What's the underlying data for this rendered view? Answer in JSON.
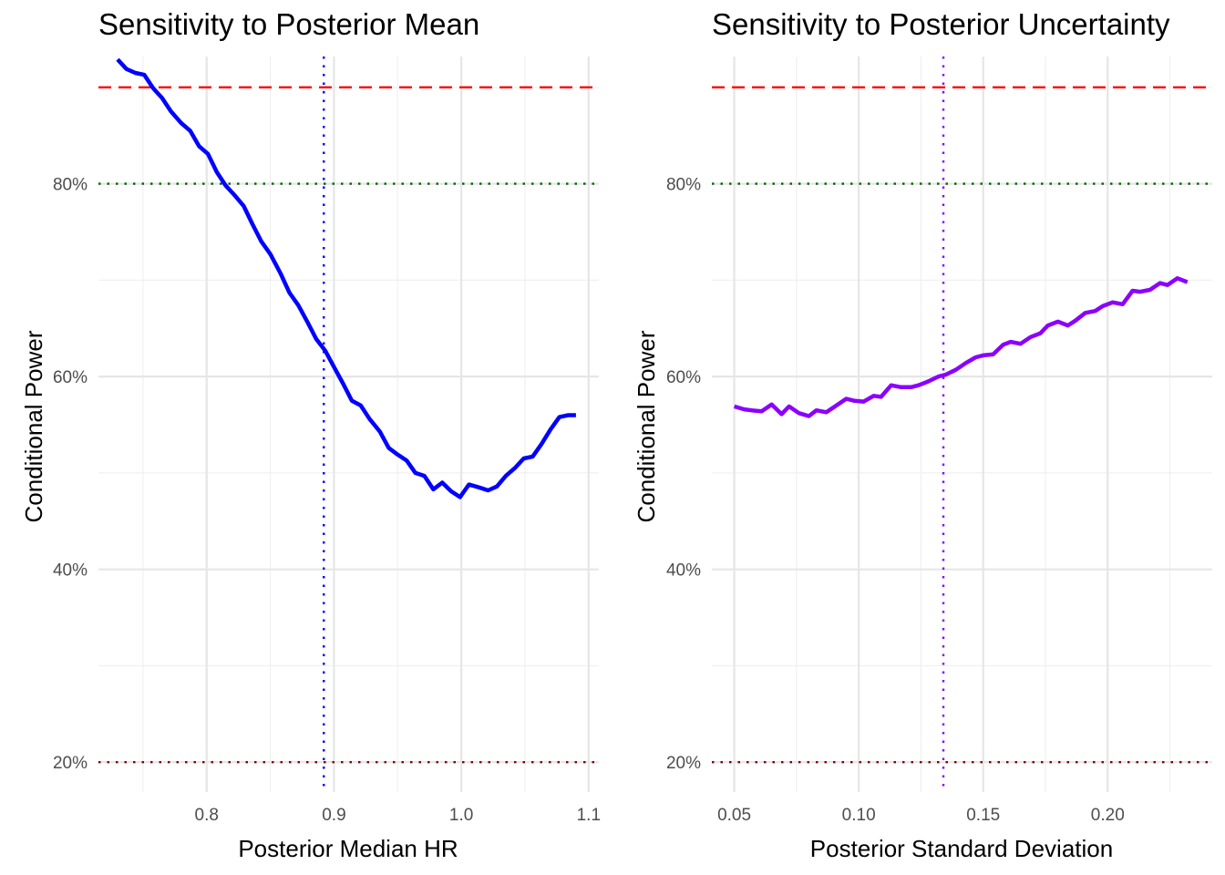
{
  "chart_data": [
    {
      "type": "line",
      "title": "Sensitivity to Posterior Mean",
      "xlabel": "Posterior Median HR",
      "ylabel": "Conditional Power",
      "xlim": [
        0.715,
        1.108
      ],
      "ylim": [
        16.9,
        93.2
      ],
      "x_ticks": [
        0.8,
        0.9,
        1.0,
        1.1
      ],
      "x_tick_labels": [
        "0.8",
        "0.9",
        "1.0",
        "1.1"
      ],
      "y_ticks": [
        20,
        40,
        60,
        80
      ],
      "y_tick_labels": [
        "20%",
        "40%",
        "60%",
        "80%"
      ],
      "grid": true,
      "line_color": "#0000ff",
      "reference_lines": [
        {
          "orientation": "horizontal",
          "value": 90,
          "style": "dashed",
          "color": "#ff0000"
        },
        {
          "orientation": "horizontal",
          "value": 80,
          "style": "dotted",
          "color": "#006400"
        },
        {
          "orientation": "horizontal",
          "value": 20,
          "style": "dotted",
          "color": "#8b0000"
        },
        {
          "orientation": "vertical",
          "value": 0.892,
          "style": "dotted",
          "color": "#0000ff"
        }
      ],
      "series": [
        {
          "x": [
            0.73,
            0.737,
            0.744,
            0.751,
            0.758,
            0.765,
            0.772,
            0.78,
            0.787,
            0.794,
            0.801,
            0.808,
            0.815,
            0.822,
            0.829,
            0.836,
            0.843,
            0.85,
            0.858,
            0.865,
            0.872,
            0.879,
            0.886,
            0.893,
            0.9,
            0.907,
            0.914,
            0.921,
            0.928,
            0.936,
            0.943,
            0.95,
            0.957,
            0.964,
            0.971,
            0.978,
            0.985,
            0.992,
            0.999,
            1.006,
            1.014,
            1.021,
            1.028,
            1.035,
            1.042,
            1.049,
            1.056,
            1.063,
            1.07,
            1.077,
            1.084,
            1.09
          ],
          "values": [
            92.9,
            91.9,
            91.5,
            91.3,
            89.9,
            88.9,
            87.5,
            86.3,
            85.5,
            83.9,
            83.1,
            81.2,
            79.8,
            78.8,
            77.7,
            75.8,
            74.0,
            72.7,
            70.7,
            68.7,
            67.4,
            65.7,
            63.9,
            62.7,
            61.0,
            59.3,
            57.5,
            57.0,
            55.6,
            54.3,
            52.6,
            51.9,
            51.3,
            50.0,
            49.7,
            48.3,
            49.0,
            48.1,
            47.5,
            48.8,
            48.5,
            48.2,
            48.6,
            49.7,
            50.5,
            51.5,
            51.7,
            53.0,
            54.5,
            55.8,
            56.0,
            56.0
          ]
        }
      ]
    },
    {
      "type": "line",
      "title": "Sensitivity to Posterior Uncertainty",
      "xlabel": "Posterior Standard Deviation",
      "ylabel": "Conditional Power",
      "xlim": [
        0.041,
        0.242
      ],
      "ylim": [
        16.9,
        93.2
      ],
      "x_ticks": [
        0.05,
        0.1,
        0.15,
        0.2
      ],
      "x_tick_labels": [
        "0.05",
        "0.10",
        "0.15",
        "0.20"
      ],
      "y_ticks": [
        20,
        40,
        60,
        80
      ],
      "y_tick_labels": [
        "20%",
        "40%",
        "60%",
        "80%"
      ],
      "grid": true,
      "line_color": "#8b00ff",
      "reference_lines": [
        {
          "orientation": "horizontal",
          "value": 90,
          "style": "dashed",
          "color": "#ff0000"
        },
        {
          "orientation": "horizontal",
          "value": 80,
          "style": "dotted",
          "color": "#006400"
        },
        {
          "orientation": "horizontal",
          "value": 20,
          "style": "dotted",
          "color": "#8b0000"
        },
        {
          "orientation": "vertical",
          "value": 0.134,
          "style": "dotted",
          "color": "#8b00ff"
        }
      ],
      "series": [
        {
          "x": [
            0.05,
            0.054,
            0.057,
            0.061,
            0.065,
            0.069,
            0.072,
            0.076,
            0.08,
            0.083,
            0.087,
            0.091,
            0.095,
            0.098,
            0.102,
            0.106,
            0.109,
            0.113,
            0.117,
            0.121,
            0.124,
            0.128,
            0.132,
            0.135,
            0.139,
            0.143,
            0.147,
            0.15,
            0.154,
            0.158,
            0.161,
            0.165,
            0.169,
            0.173,
            0.176,
            0.18,
            0.184,
            0.187,
            0.191,
            0.195,
            0.198,
            0.202,
            0.206,
            0.21,
            0.213,
            0.217,
            0.221,
            0.224,
            0.228,
            0.232
          ],
          "values": [
            56.9,
            56.6,
            56.5,
            56.4,
            57.1,
            56.1,
            56.9,
            56.2,
            55.9,
            56.5,
            56.3,
            57.0,
            57.7,
            57.5,
            57.4,
            58.0,
            57.9,
            59.1,
            58.9,
            58.9,
            59.1,
            59.5,
            60.0,
            60.2,
            60.7,
            61.4,
            62.0,
            62.2,
            62.3,
            63.3,
            63.6,
            63.4,
            64.1,
            64.5,
            65.3,
            65.7,
            65.3,
            65.8,
            66.6,
            66.8,
            67.3,
            67.7,
            67.5,
            68.9,
            68.8,
            69.0,
            69.7,
            69.5,
            70.2,
            69.8
          ]
        }
      ]
    }
  ]
}
